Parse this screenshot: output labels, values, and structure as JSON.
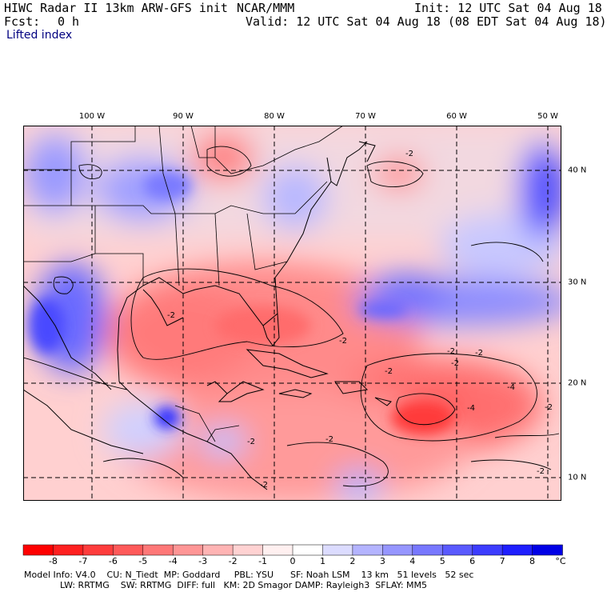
{
  "header": {
    "title": "HIWC Radar II 13km ARW-GFS init",
    "org": "NCAR/MMM",
    "init": "Init: 12 UTC Sat 04 Aug 18",
    "fcst_label": "Fcst:",
    "fcst_value": "0 h",
    "valid": "Valid: 12 UTC Sat 04 Aug 18 (08 EDT Sat 04 Aug 18)",
    "field": "Lifted index"
  },
  "axes": {
    "lon_labels": [
      "100 W",
      "90 W",
      "80 W",
      "70 W",
      "60 W",
      "50 W"
    ],
    "lat_labels": [
      "40 N",
      "30 N",
      "20 N",
      "10 N"
    ]
  },
  "colorbar": {
    "labels": [
      "-8",
      "-7",
      "-6",
      "-5",
      "-4",
      "-3",
      "-2",
      "-1",
      "0",
      "1",
      "2",
      "3",
      "4",
      "5",
      "6",
      "7",
      "8"
    ],
    "unit": "°C",
    "colors": [
      "#ff0000",
      "#ff2020",
      "#ff3c3c",
      "#ff5a5a",
      "#ff7878",
      "#ff9696",
      "#ffb4b4",
      "#ffd2d2",
      "#fff0f0",
      "#ffffff",
      "#dcdcff",
      "#b4b4ff",
      "#9696ff",
      "#7878ff",
      "#5a5aff",
      "#3c3cff",
      "#1e1eff",
      "#0000e6"
    ]
  },
  "footer": {
    "line1": "Model Info: V4.0    CU: N_Tiedt  MP: Goddard     PBL: YSU      SF: Noah LSM    13 km   51 levels   52 sec",
    "line2": "LW: RRTMG    SW: RRTMG  DIFF: full   KM: 2D Smagor DAMP: Rayleigh3  SFLAY: MM5"
  },
  "map": {
    "contour_labels": [
      "-2",
      "-2",
      "-2",
      "-2",
      "-2",
      "-2",
      "-2",
      "-4",
      "-4",
      "-2",
      "-2",
      "-2",
      "-2",
      "-2"
    ]
  }
}
